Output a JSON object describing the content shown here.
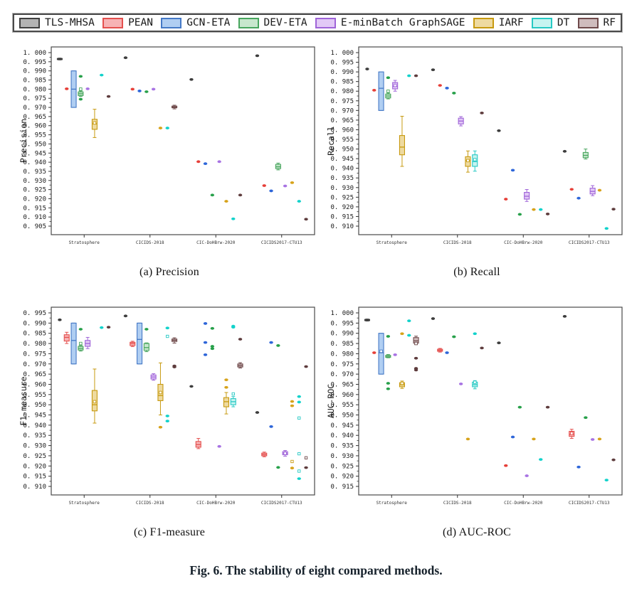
{
  "figure": {
    "caption": "Fig. 6. The stability of eight compared methods."
  },
  "chart_data": {
    "type": "bar",
    "subtype": "grouped-boxplot-grid",
    "legend_position": "top",
    "grid": false,
    "categories": [
      "Stratosphere",
      "CICIDS-2018",
      "CIC-DoHBrw-2020",
      "CICIDS2017-CTU13"
    ],
    "methods": [
      {
        "name": "TLS-MHSA",
        "fill": "#b3b3b3",
        "edge": "#404040",
        "dot": "#3d3d3d"
      },
      {
        "name": "PEAN",
        "fill": "#f7b3b5",
        "edge": "#e4504e",
        "dot": "#e63f38"
      },
      {
        "name": "GCN-ETA",
        "fill": "#b0cef2",
        "edge": "#4579c6",
        "dot": "#2e66d9"
      },
      {
        "name": "DEV-ETA",
        "fill": "#c7e7cd",
        "edge": "#48a55e",
        "dot": "#27a04a"
      },
      {
        "name": "E-minBatch GraphSAGE",
        "fill": "#e2c9f6",
        "edge": "#9f64d8",
        "dot": "#a873e3"
      },
      {
        "name": "IARF",
        "fill": "#eedaa0",
        "edge": "#c79a10",
        "dot": "#d7a31b"
      },
      {
        "name": "DT",
        "fill": "#c6f4f0",
        "edge": "#27c9c4",
        "dot": "#12d2cb"
      },
      {
        "name": "RF",
        "fill": "#cfbcbd",
        "edge": "#6f4a4b",
        "dot": "#5e3c3d"
      }
    ],
    "subplots": [
      {
        "id": "a",
        "caption": "(a) Precision",
        "ylabel": "Precision",
        "ymin": 0.905,
        "ymax": 1.0,
        "ytick_step": 0.005,
        "groups": [
          [
            {
              "b": [
                0.996,
                0.9962,
                0.9965,
                0.9968,
                0.997
              ]
            },
            {
              "p": [
                0.9802
              ]
            },
            {
              "b": [
                0.97,
                0.97,
                0.98,
                0.99,
                0.99
              ]
            },
            {
              "b": [
                0.976,
                0.9765,
                0.9775,
                0.9785,
                0.979
              ],
              "m": 0.98,
              "p": [
                0.987,
                0.9745
              ]
            },
            {
              "p": [
                0.9802
              ]
            },
            {
              "b": [
                0.9535,
                0.958,
                0.961,
                0.9635,
                0.969
              ],
              "m": 0.9615
            },
            {
              "p": [
                0.9877
              ]
            },
            {
              "p": [
                0.976
              ]
            }
          ],
          [
            {
              "p": [
                0.9972
              ]
            },
            {
              "p": [
                0.98
              ]
            },
            {
              "p": [
                0.979
              ]
            },
            {
              "p": [
                0.9786
              ]
            },
            {
              "p": [
                0.98
              ]
            },
            {
              "p": [
                0.9587
              ]
            },
            {
              "p": [
                0.9587
              ]
            },
            {
              "b": [
                0.9692,
                0.9698,
                0.9702,
                0.9707,
                0.9712
              ]
            }
          ],
          [
            {
              "p": [
                0.9853
              ]
            },
            {
              "p": [
                0.9403
              ]
            },
            {
              "p": [
                0.9392
              ]
            },
            {
              "p": [
                0.922
              ]
            },
            {
              "p": [
                0.9403
              ]
            },
            {
              "p": [
                0.9186
              ]
            },
            {
              "p": [
                0.909
              ]
            },
            {
              "p": [
                0.922
              ]
            }
          ],
          [
            {
              "p": [
                0.9983
              ]
            },
            {
              "p": [
                0.9272
              ]
            },
            {
              "p": [
                0.9243
              ]
            },
            {
              "b": [
                0.9358,
                0.9365,
                0.9375,
                0.9388,
                0.9395
              ]
            },
            {
              "p": [
                0.927
              ]
            },
            {
              "p": [
                0.9288
              ]
            },
            {
              "p": [
                0.9186
              ]
            },
            {
              "p": [
                0.9088
              ]
            }
          ]
        ]
      },
      {
        "id": "b",
        "caption": "(b) Recall",
        "ylabel": "Recall",
        "ymin": 0.91,
        "ymax": 1.0,
        "ytick_step": 0.005,
        "groups": [
          [
            {
              "p": [
                0.9915
              ]
            },
            {
              "p": [
                0.9805
              ]
            },
            {
              "b": [
                0.97,
                0.97,
                0.9815,
                0.99,
                0.99
              ]
            },
            {
              "b": [
                0.976,
                0.9765,
                0.9775,
                0.9785,
                0.979
              ],
              "m": 0.98,
              "p": [
                0.987
              ]
            },
            {
              "b": [
                0.98,
                0.9812,
                0.9825,
                0.9845,
                0.9856
              ],
              "m": 0.983
            },
            {
              "b": [
                0.941,
                0.947,
                0.951,
                0.957,
                0.967
              ]
            },
            {
              "p": [
                0.988
              ]
            },
            {
              "p": [
                0.988
              ]
            }
          ],
          [
            {
              "p": [
                0.9911
              ]
            },
            {
              "p": [
                0.983
              ]
            },
            {
              "p": [
                0.9816
              ]
            },
            {
              "p": [
                0.979
              ]
            },
            {
              "b": [
                0.962,
                0.963,
                0.9645,
                0.966,
                0.9668
              ]
            },
            {
              "b": [
                0.938,
                0.941,
                0.944,
                0.946,
                0.949
              ],
              "m": 0.944
            },
            {
              "b": [
                0.9385,
                0.941,
                0.9435,
                0.947,
                0.949
              ],
              "m": 0.9445
            },
            {
              "p": [
                0.9687
              ]
            }
          ],
          [
            {
              "p": [
                0.9595
              ]
            },
            {
              "p": [
                0.924
              ]
            },
            {
              "p": [
                0.939
              ]
            },
            {
              "p": [
                0.9161
              ]
            },
            {
              "b": [
                0.9228,
                0.924,
                0.9255,
                0.9275,
                0.929
              ]
            },
            {
              "p": [
                0.9186
              ]
            },
            {
              "p": [
                0.9186
              ]
            },
            {
              "p": [
                0.9163
              ]
            }
          ],
          [
            {
              "p": [
                0.9488
              ]
            },
            {
              "p": [
                0.9291
              ]
            },
            {
              "p": [
                0.9245
              ]
            },
            {
              "b": [
                0.9448,
                0.9455,
                0.9467,
                0.9482,
                0.95
              ]
            },
            {
              "b": [
                0.9258,
                0.9267,
                0.928,
                0.9297,
                0.931
              ]
            },
            {
              "p": [
                0.9286
              ]
            },
            {
              "p": [
                0.9088
              ]
            },
            {
              "p": [
                0.9188
              ]
            }
          ]
        ]
      },
      {
        "id": "c",
        "caption": "(c) F1-measure",
        "ylabel": "F1-measure",
        "ymin": 0.91,
        "ymax": 0.995,
        "ytick_step": 0.005,
        "groups": [
          [
            {
              "p": [
                0.9916
              ]
            },
            {
              "b": [
                0.98,
                0.9812,
                0.983,
                0.9843,
                0.9855
              ]
            },
            {
              "b": [
                0.97,
                0.97,
                0.9815,
                0.99,
                0.99
              ]
            },
            {
              "b": [
                0.9763,
                0.9768,
                0.9776,
                0.9786,
                0.979
              ],
              "m": 0.98,
              "p": [
                0.987
              ]
            },
            {
              "b": [
                0.9775,
                0.9786,
                0.98,
                0.9815,
                0.983
              ]
            },
            {
              "b": [
                0.941,
                0.947,
                0.95,
                0.957,
                0.9675
              ],
              "m": 0.9515
            },
            {
              "p": [
                0.9878
              ]
            },
            {
              "p": [
                0.988
              ]
            }
          ],
          [
            {
              "p": [
                0.9935
              ]
            },
            {
              "b": [
                0.9785,
                0.979,
                0.98,
                0.9806,
                0.9811
              ]
            },
            {
              "b": [
                0.97,
                0.97,
                0.982,
                0.99,
                0.99
              ]
            },
            {
              "b": [
                0.976,
                0.9766,
                0.978,
                0.98,
                0.9803
              ],
              "p": [
                0.987
              ]
            },
            {
              "b": [
                0.962,
                0.9626,
                0.9636,
                0.9646,
                0.9652
              ]
            },
            {
              "b": [
                0.945,
                0.952,
                0.9545,
                0.96,
                0.9705
              ],
              "m": 0.956,
              "p": [
                0.939
              ]
            },
            {
              "p": [
                0.9876,
                0.9445,
                0.942
              ],
              "o": [
                0.9835
              ]
            },
            {
              "b": [
                0.9802,
                0.981,
                0.9816,
                0.9822,
                0.9828
              ],
              "p": [
                0.969,
                0.9685
              ]
            }
          ],
          [
            {
              "p": [
                0.959
              ]
            },
            {
              "b": [
                0.9285,
                0.9292,
                0.9305,
                0.932,
                0.9335
              ]
            },
            {
              "p": [
                0.9898,
                0.9805,
                0.9745
              ]
            },
            {
              "p": [
                0.9874,
                0.9786,
                0.9775
              ]
            },
            {
              "p": [
                0.9296
              ]
            },
            {
              "b": [
                0.9455,
                0.949,
                0.9515,
                0.9535,
                0.956
              ],
              "p": [
                0.9622,
                0.9585
              ]
            },
            {
              "b": [
                0.949,
                0.95,
                0.9515,
                0.953,
                0.954
              ],
              "o": [
                0.9553
              ],
              "p": [
                0.9885,
                0.988
              ]
            },
            {
              "b": [
                0.968,
                0.9685,
                0.9692,
                0.97,
                0.9706
              ],
              "p": [
                0.9821
              ]
            }
          ],
          [
            {
              "p": [
                0.9462
              ]
            },
            {
              "b": [
                0.9245,
                0.925,
                0.9256,
                0.9263,
                0.9268
              ]
            },
            {
              "p": [
                0.9805,
                0.9393
              ]
            },
            {
              "p": [
                0.979,
                0.9193
              ]
            },
            {
              "b": [
                0.9248,
                0.9255,
                0.9262,
                0.927,
                0.9276
              ],
              "m": 0.9262
            },
            {
              "p": [
                0.9516,
                0.9495,
                0.919
              ],
              "o": [
                0.9222
              ]
            },
            {
              "p": [
                0.954,
                0.9513,
                0.9138
              ],
              "o": [
                0.9435,
                0.9175,
                0.926
              ]
            },
            {
              "p": [
                0.9687,
                0.9192
              ],
              "o": [
                0.924
              ]
            }
          ]
        ]
      },
      {
        "id": "d",
        "caption": "(d) AUC-ROC",
        "ylabel": "AUC-ROC",
        "ymin": 0.915,
        "ymax": 1.0,
        "ytick_step": 0.005,
        "groups": [
          [
            {
              "b": [
                0.996,
                0.9962,
                0.9965,
                0.9968,
                0.997
              ]
            },
            {
              "p": [
                0.9805
              ]
            },
            {
              "b": [
                0.97,
                0.97,
                0.9805,
                0.99,
                0.99
              ],
              "m": 0.9812
            },
            {
              "b": [
                0.978,
                0.9782,
                0.9787,
                0.9792,
                0.9796
              ],
              "p": [
                0.9885,
                0.9655,
                0.9628
              ]
            },
            {
              "p": [
                0.9795
              ]
            },
            {
              "b": [
                0.963,
                0.9638,
                0.9648,
                0.9658,
                0.9666
              ],
              "m": 0.9655,
              "p": [
                0.9898
              ]
            },
            {
              "p": [
                0.9961,
                0.989
              ]
            },
            {
              "b": [
                0.9845,
                0.9852,
                0.9863,
                0.9879,
                0.9886
              ],
              "m": 0.985,
              "p": [
                0.9778,
                0.9728,
                0.972
              ]
            }
          ],
          [
            {
              "p": [
                0.9972
              ]
            },
            {
              "b": [
                0.9808,
                0.9812,
                0.9817,
                0.9822,
                0.9826
              ]
            },
            {
              "p": [
                0.9805
              ]
            },
            {
              "p": [
                0.9883
              ]
            },
            {
              "p": [
                0.9652
              ]
            },
            {
              "p": [
                0.9382
              ]
            },
            {
              "b": [
                0.9628,
                0.9638,
                0.9648,
                0.9661,
                0.9668
              ],
              "m": 0.966,
              "p": [
                0.9898
              ]
            },
            {
              "p": [
                0.9828
              ]
            }
          ],
          [
            {
              "p": [
                0.9853
              ]
            },
            {
              "p": [
                0.9252
              ]
            },
            {
              "p": [
                0.9392
              ]
            },
            {
              "p": [
                0.9538
              ]
            },
            {
              "p": [
                0.9202
              ]
            },
            {
              "p": [
                0.9382
              ]
            },
            {
              "p": [
                0.9282
              ]
            },
            {
              "p": [
                0.9538
              ]
            }
          ],
          [
            {
              "p": [
                0.9983
              ]
            },
            {
              "b": [
                0.9385,
                0.9395,
                0.9405,
                0.942,
                0.943
              ],
              "m": 0.941
            },
            {
              "p": [
                0.9245
              ]
            },
            {
              "p": [
                0.9487
              ]
            },
            {
              "p": [
                0.938
              ]
            },
            {
              "p": [
                0.9382
              ]
            },
            {
              "p": [
                0.9181
              ]
            },
            {
              "p": [
                0.928
              ]
            }
          ]
        ]
      }
    ]
  }
}
